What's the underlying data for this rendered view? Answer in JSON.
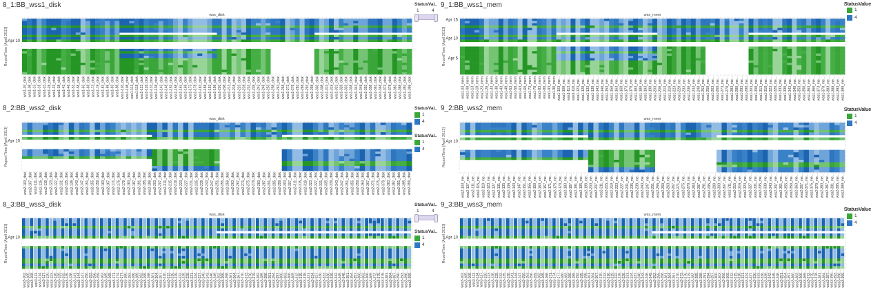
{
  "legend": {
    "short_title": "StatusVal..",
    "full_title": "StatusValue",
    "range_min": "1",
    "range_max": "4",
    "item_1": "1",
    "item_4": "4"
  },
  "colors": {
    "status_1": "#39a839",
    "status_4": "#2e78c4"
  },
  "chart_data": [
    {
      "type": "heatmap",
      "title": "8_1:BB_wss1_disk",
      "xlabel": "wss_disk",
      "ylabel": "ReportTime [April 2013]",
      "x_labels": {
        "prefix": "wss1-",
        "start": 3,
        "step": 5,
        "count": 80,
        "suffix": "_disk",
        "max_len": 13,
        "pad2": true
      },
      "rows": 24,
      "yticks": [
        {
          "label": "Apr 10",
          "row": 9.5
        }
      ],
      "regions": [
        {
          "c": [
            0,
            79
          ],
          "r": [
            0,
            9
          ],
          "v": 4
        },
        {
          "c": [
            0,
            79
          ],
          "r": [
            3,
            3
          ],
          "v": 1
        },
        {
          "c": [
            0,
            79
          ],
          "r": [
            7,
            7
          ],
          "v": 1
        },
        {
          "c": [
            0,
            79
          ],
          "r": [
            9,
            9
          ],
          "v": 1
        },
        {
          "c": [
            20,
            39
          ],
          "r": [
            6,
            6
          ],
          "v": null
        },
        {
          "c": [
            60,
            79
          ],
          "r": [
            6,
            6
          ],
          "v": null
        },
        {
          "c": [
            0,
            50
          ],
          "r": [
            13,
            23
          ],
          "v": 1
        },
        {
          "c": [
            20,
            39
          ],
          "r": [
            13,
            16
          ],
          "v": 4
        },
        {
          "c": [
            20,
            39
          ],
          "r": [
            14,
            14
          ],
          "v": 1
        },
        {
          "c": [
            60,
            79
          ],
          "r": [
            13,
            23
          ],
          "v": 1
        }
      ]
    },
    {
      "type": "heatmap",
      "title": "8_2:BB_wss2_disk",
      "xlabel": "wss_disk",
      "ylabel": "ReportTime [April 2013]",
      "x_labels": {
        "prefix": "wss2-",
        "start": 103,
        "step": 4,
        "count": 75,
        "suffix": "_disk",
        "max_len": 13,
        "pad2": false
      },
      "rows": 20,
      "yticks": [
        {
          "label": "Apr 10",
          "row": 7.5
        }
      ],
      "regions": [
        {
          "c": [
            0,
            74
          ],
          "r": [
            0,
            6
          ],
          "v": 4
        },
        {
          "c": [
            0,
            74
          ],
          "r": [
            3,
            3
          ],
          "v": 1
        },
        {
          "c": [
            0,
            74
          ],
          "r": [
            6,
            6
          ],
          "v": 1
        },
        {
          "c": [
            0,
            24
          ],
          "r": [
            5,
            5
          ],
          "v": null
        },
        {
          "c": [
            50,
            74
          ],
          "r": [
            5,
            5
          ],
          "v": null
        },
        {
          "c": [
            0,
            24
          ],
          "r": [
            11,
            13
          ],
          "v": 4
        },
        {
          "c": [
            0,
            24
          ],
          "r": [
            14,
            14
          ],
          "v": 1
        },
        {
          "c": [
            25,
            37
          ],
          "r": [
            11,
            17
          ],
          "v": 1
        },
        {
          "c": [
            25,
            37
          ],
          "r": [
            18,
            19
          ],
          "v": 4
        },
        {
          "c": [
            50,
            74
          ],
          "r": [
            11,
            19
          ],
          "v": 4
        },
        {
          "c": [
            50,
            74
          ],
          "r": [
            16,
            17
          ],
          "v": 1
        }
      ]
    },
    {
      "type": "heatmap",
      "title": "8_3:BB_wss3_disk",
      "xlabel": "wss_disk",
      "ylabel": "ReportTime [April 2013]",
      "x_labels": {
        "prefix": "wss3-",
        "start": 102,
        "step": 3,
        "count": 100,
        "suffix": "_disk",
        "max_len": 8,
        "pad2": false
      },
      "rows": 20,
      "yticks": [
        {
          "label": "Apr 10",
          "row": 7.5
        }
      ],
      "regions": [
        {
          "c": [
            0,
            99
          ],
          "r": [
            0,
            7
          ],
          "v": 4
        },
        {
          "c": [
            0,
            99
          ],
          "r": [
            3,
            3
          ],
          "v": 1
        },
        {
          "c": [
            0,
            99
          ],
          "r": [
            7,
            7
          ],
          "v": 1
        },
        {
          "c": [
            50,
            99
          ],
          "r": [
            5,
            5
          ],
          "v": null
        },
        {
          "c": [
            0,
            99
          ],
          "r": [
            11,
            19
          ],
          "v": 4
        },
        {
          "c": [
            0,
            99
          ],
          "r": [
            11,
            11
          ],
          "v": 1
        },
        {
          "c": [
            0,
            99
          ],
          "r": [
            16,
            17
          ],
          "v": 1
        },
        {
          "c": [
            0,
            99
          ],
          "r": [
            19,
            19
          ],
          "v": 1
        }
      ]
    },
    {
      "type": "heatmap",
      "title": "9_1:BB_wss1_mem",
      "xlabel": "wss_mem",
      "ylabel": "ReportTime [April 2013]",
      "x_labels": {
        "prefix": "wss1-",
        "start": 3,
        "step": 5,
        "count": 80,
        "suffix": "_mem",
        "max_len": 11,
        "pad2": true
      },
      "rows": 24,
      "yticks": [
        {
          "label": "Apr 15",
          "row": 0.5
        },
        {
          "label": "Apr 10",
          "row": 8.5
        },
        {
          "label": "Apr 5",
          "row": 17
        }
      ],
      "regions": [
        {
          "c": [
            0,
            79
          ],
          "r": [
            0,
            9
          ],
          "v": 4
        },
        {
          "c": [
            0,
            79
          ],
          "r": [
            3,
            3
          ],
          "v": 1
        },
        {
          "c": [
            0,
            79
          ],
          "r": [
            7,
            7
          ],
          "v": 1
        },
        {
          "c": [
            0,
            79
          ],
          "r": [
            9,
            9
          ],
          "v": 1
        },
        {
          "c": [
            20,
            40
          ],
          "r": [
            6,
            6
          ],
          "v": null
        },
        {
          "c": [
            60,
            79
          ],
          "r": [
            6,
            6
          ],
          "v": null
        },
        {
          "c": [
            0,
            50
          ],
          "r": [
            12,
            23
          ],
          "v": 1
        },
        {
          "c": [
            20,
            40
          ],
          "r": [
            12,
            17
          ],
          "v": 4
        },
        {
          "c": [
            20,
            40
          ],
          "r": [
            14,
            14
          ],
          "v": 1
        },
        {
          "c": [
            60,
            79
          ],
          "r": [
            12,
            23
          ],
          "v": 1
        }
      ]
    },
    {
      "type": "heatmap",
      "title": "9_2:BB_wss2_mem",
      "xlabel": "wss_mem",
      "ylabel": "ReportTime [April 2013]",
      "x_labels": {
        "prefix": "wss2-",
        "start": 103,
        "step": 4,
        "count": 75,
        "suffix": "_mem",
        "max_len": 11,
        "pad2": false
      },
      "rows": 20,
      "yticks": [
        {
          "label": "Apr 10",
          "row": 7.5
        }
      ],
      "regions": [
        {
          "c": [
            0,
            74
          ],
          "r": [
            0,
            6
          ],
          "v": 4
        },
        {
          "c": [
            0,
            74
          ],
          "r": [
            3,
            3
          ],
          "v": 1
        },
        {
          "c": [
            0,
            74
          ],
          "r": [
            6,
            6
          ],
          "v": 1
        },
        {
          "c": [
            0,
            24
          ],
          "r": [
            5,
            5
          ],
          "v": null
        },
        {
          "c": [
            50,
            74
          ],
          "r": [
            5,
            5
          ],
          "v": null
        },
        {
          "c": [
            0,
            24
          ],
          "r": [
            11,
            13
          ],
          "v": 4
        },
        {
          "c": [
            0,
            24
          ],
          "r": [
            14,
            14
          ],
          "v": 1
        },
        {
          "c": [
            25,
            37
          ],
          "r": [
            11,
            17
          ],
          "v": 1
        },
        {
          "c": [
            25,
            37
          ],
          "r": [
            18,
            19
          ],
          "v": 4
        },
        {
          "c": [
            50,
            74
          ],
          "r": [
            11,
            19
          ],
          "v": 4
        },
        {
          "c": [
            50,
            74
          ],
          "r": [
            16,
            17
          ],
          "v": 1
        }
      ]
    },
    {
      "type": "heatmap",
      "title": "9_3:BB_wss3_mem",
      "xlabel": "wss_mem",
      "ylabel": "ReportTime [April 2013]",
      "x_labels": {
        "prefix": "wss3-",
        "start": 102,
        "step": 3,
        "count": 100,
        "suffix": "_mem",
        "max_len": 8,
        "pad2": false
      },
      "rows": 20,
      "yticks": [
        {
          "label": "Apr 10",
          "row": 7.5
        }
      ],
      "regions": [
        {
          "c": [
            0,
            99
          ],
          "r": [
            0,
            7
          ],
          "v": 4
        },
        {
          "c": [
            0,
            99
          ],
          "r": [
            3,
            3
          ],
          "v": 1
        },
        {
          "c": [
            0,
            99
          ],
          "r": [
            7,
            7
          ],
          "v": 1
        },
        {
          "c": [
            50,
            99
          ],
          "r": [
            5,
            5
          ],
          "v": null
        },
        {
          "c": [
            0,
            99
          ],
          "r": [
            11,
            19
          ],
          "v": 4
        },
        {
          "c": [
            0,
            99
          ],
          "r": [
            11,
            11
          ],
          "v": 1
        },
        {
          "c": [
            0,
            99
          ],
          "r": [
            16,
            17
          ],
          "v": 1
        },
        {
          "c": [
            0,
            99
          ],
          "r": [
            19,
            19
          ],
          "v": 1
        }
      ]
    }
  ]
}
